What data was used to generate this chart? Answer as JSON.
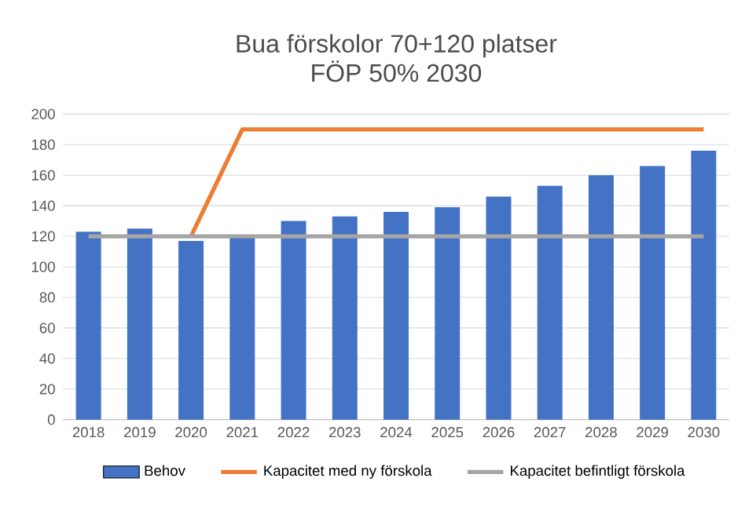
{
  "chart_data": {
    "type": "bar",
    "title": "Bua förskolor 70+120 platser",
    "subtitle": "FÖP 50% 2030",
    "categories": [
      "2018",
      "2019",
      "2020",
      "2021",
      "2022",
      "2023",
      "2024",
      "2025",
      "2026",
      "2027",
      "2028",
      "2029",
      "2030"
    ],
    "series": [
      {
        "name": "Behov",
        "color": "#4472c4",
        "values": [
          123,
          125,
          117,
          119,
          130,
          133,
          136,
          139,
          146,
          153,
          160,
          166,
          176
        ]
      },
      {
        "name": "Kapacitet med ny förskola",
        "type": "line",
        "color": "#ed7d31",
        "values": [
          null,
          null,
          120,
          190,
          190,
          190,
          190,
          190,
          190,
          190,
          190,
          190,
          190
        ]
      },
      {
        "name": "Kapacitet befintligt förskola",
        "type": "line",
        "color": "#a5a5a5",
        "values": [
          120,
          120,
          120,
          120,
          120,
          120,
          120,
          120,
          120,
          120,
          120,
          120,
          120
        ]
      }
    ],
    "ylim": [
      0,
      200
    ],
    "yticks": [
      0,
      20,
      40,
      60,
      80,
      100,
      120,
      140,
      160,
      180,
      200
    ],
    "grid": "y",
    "legend": "bottom"
  }
}
